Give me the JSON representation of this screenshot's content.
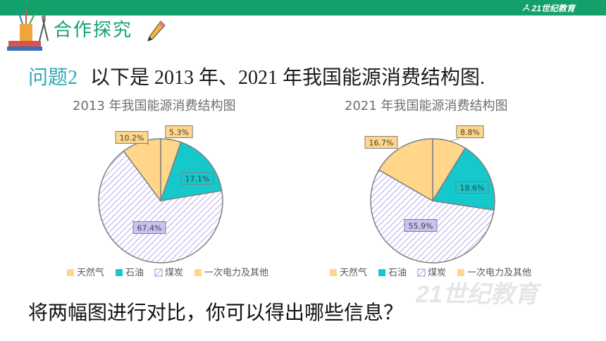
{
  "header": {
    "brand": "21世纪教育",
    "section_title": "合作探究"
  },
  "question": {
    "number": "问题2",
    "text": "以下是 2013 年、2021 年我国能源消费结构图."
  },
  "colors": {
    "natural_gas": "#ffd68a",
    "oil": "#14c8cc",
    "coal_hatch": "#bfb6f0",
    "primary_power": "#ffd68a",
    "slice_stroke": "#7f7f7f"
  },
  "chart_data": [
    {
      "type": "pie",
      "title": "2013 年我国能源消费结构图",
      "labels": [
        "天然气",
        "石油",
        "煤炭",
        "一次电力及其他"
      ],
      "values": [
        5.3,
        17.1,
        67.4,
        10.2
      ],
      "value_labels": [
        "5.3%",
        "17.1%",
        "67.4%",
        "10.2%"
      ],
      "legend": "bottom"
    },
    {
      "type": "pie",
      "title": "2021 年我国能源消费结构图",
      "labels": [
        "天然气",
        "石油",
        "煤炭",
        "一次电力及其他"
      ],
      "values": [
        8.8,
        18.6,
        55.9,
        16.7
      ],
      "value_labels": [
        "8.8%",
        "18.6%",
        "55.9%",
        "16.7%"
      ],
      "legend": "bottom"
    }
  ],
  "bottom_prompt": "将两幅图进行对比，你可以得出哪些信息？",
  "watermark": "21世纪教育"
}
